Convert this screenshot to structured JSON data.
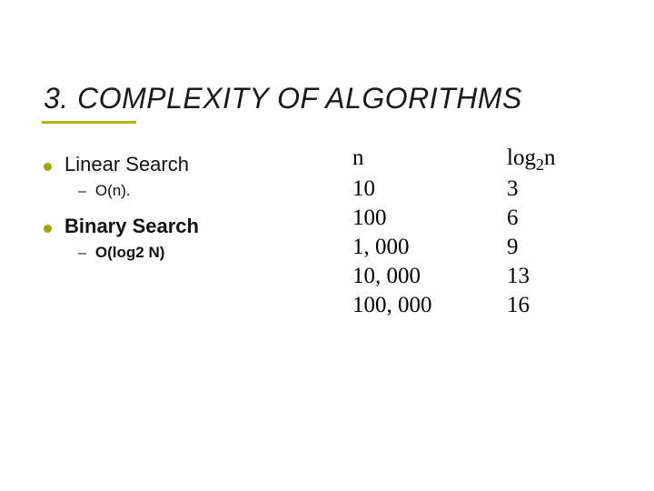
{
  "slide": {
    "title": "3. COMPLEXITY OF ALGORITHMS",
    "accent_color": "#b1b600",
    "bullets": [
      {
        "label": "Linear Search",
        "bold": false,
        "sub": {
          "label": "O(n).",
          "bold": false
        }
      },
      {
        "label": "Binary Search",
        "bold": true,
        "sub": {
          "label": "O(log2 N)",
          "bold": true
        }
      }
    ],
    "table": {
      "header_n": "n",
      "header_log_prefix": "log",
      "header_log_sub": "2",
      "header_log_suffix": "n",
      "rows": [
        {
          "n": "10",
          "log": "3"
        },
        {
          "n": "100",
          "log": "6"
        },
        {
          "n": "1, 000",
          "log": "9"
        },
        {
          "n": "10, 000",
          "log": "13"
        },
        {
          "n": "100, 000",
          "log": "16"
        }
      ]
    },
    "style": {
      "title_fontsize": 32,
      "title_italic": true,
      "l1_fontsize": 22,
      "l2_fontsize": 17,
      "table_fontsize": 25,
      "table_font": "Times New Roman",
      "dot_color": "#9ea400",
      "text_color": "#111111",
      "background_color": "#ffffff"
    }
  }
}
